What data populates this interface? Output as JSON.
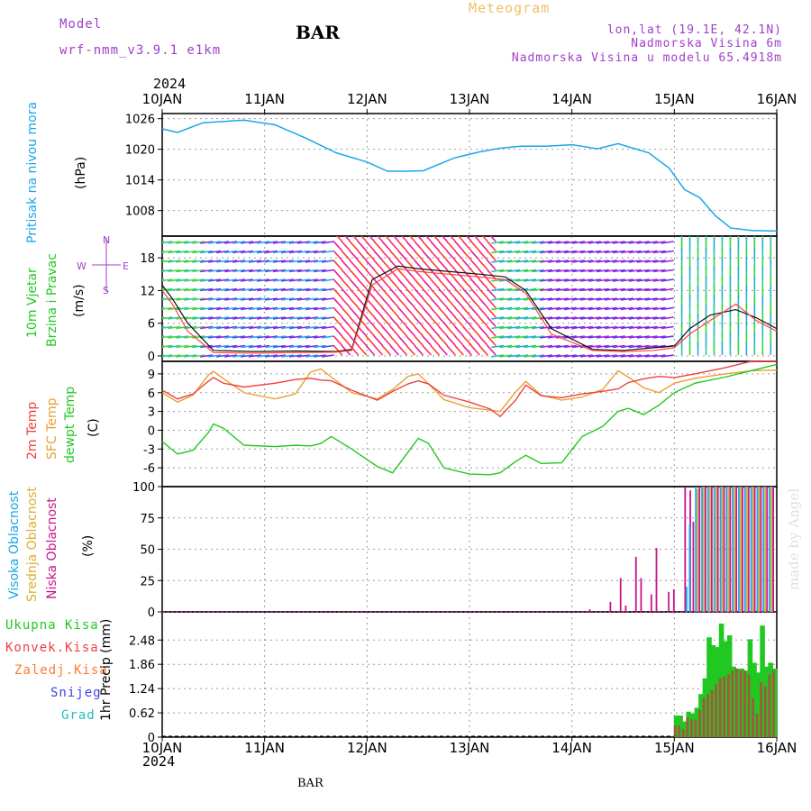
{
  "header": {
    "model_label": "Model",
    "model_name": "wrf-nmm_v3.9.1 e1km",
    "title": "BAR",
    "meteogram_label": "Meteogram",
    "lonlat": "lon,lat (19.1E, 42.1N)",
    "elevation": "Nadmorska Visina 6m",
    "model_elevation": "Nadmorska Visina u modelu 65.4918m",
    "year_top": "2024",
    "year_bottom": "2024",
    "footer": "BAR",
    "credit": "made by Angel"
  },
  "colors": {
    "pressure": "#1aa6e8",
    "temp2m": "#ef4040",
    "sfc": "#e8a030",
    "dewpt": "#22c822",
    "high_cloud": "#1aa6e8",
    "mid_cloud": "#d8b030",
    "low_cloud": "#c8148c",
    "total_precip": "#22c822",
    "conv_precip": "#ef4040",
    "frozen": "#ff7a30",
    "snow": "#4040e8",
    "graupel": "#20c0c0",
    "model": "#a040c8",
    "meteogram": "#f0c060",
    "location": "#a040c8"
  },
  "x_ticks": [
    "10JAN",
    "11JAN",
    "12JAN",
    "13JAN",
    "14JAN",
    "15JAN",
    "16JAN"
  ],
  "panel_labels": {
    "pressure": {
      "lines": [
        "Pritisak na nivou mora"
      ],
      "unit": "(hPa)"
    },
    "wind": {
      "lines": [
        "10m Vjetar",
        "Brzina i Pravac"
      ],
      "unit": "(m/s)",
      "compass": {
        "n": "N",
        "s": "S",
        "e": "E",
        "w": "W"
      }
    },
    "temp": {
      "lines": [
        "2m Temp",
        "SFC Temp",
        "dewpt Temp"
      ],
      "unit": "(C)"
    },
    "cloud": {
      "lines": [
        "Visoka Oblacnost",
        "Srednja Oblacnost",
        "Niska Oblacnost"
      ],
      "unit": "(%)"
    },
    "precip": {
      "legend": [
        "Ukupna Kisa",
        "Konvek.Kisa",
        "Zaledj.Kisa",
        "Snijeg",
        "Grad"
      ],
      "ylabel": "1hr Precip (mm)"
    }
  },
  "chart_data": [
    {
      "type": "line",
      "ylabel": "(hPa)",
      "ylim": [
        1003,
        1027
      ],
      "yticks": [
        1008,
        1014,
        1020,
        1026
      ],
      "x": [
        0,
        0.15,
        0.4,
        0.8,
        1.1,
        1.4,
        1.7,
        2.0,
        2.2,
        2.35,
        2.55,
        2.85,
        3.1,
        3.3,
        3.5,
        3.75,
        4.0,
        4.25,
        4.45,
        4.75,
        4.95,
        5.1,
        5.25,
        5.4,
        5.55,
        5.75,
        6.0
      ],
      "series": [
        {
          "values": [
            1024,
            1023.3,
            1025.2,
            1025.7,
            1024.8,
            1022.2,
            1019.3,
            1017.5,
            1015.7,
            1015.7,
            1015.8,
            1018.3,
            1019.5,
            1020.2,
            1020.6,
            1020.6,
            1020.9,
            1020.1,
            1021.1,
            1019.3,
            1016.3,
            1012.1,
            1010.5,
            1007.0,
            1004.6,
            1004.1,
            1004.0
          ]
        }
      ]
    },
    {
      "type": "line",
      "ylabel": "(m/s)",
      "ylim": [
        -1,
        22
      ],
      "yticks": [
        0,
        6,
        12,
        18
      ],
      "x": [
        0,
        0.1,
        0.25,
        0.5,
        0.9,
        1.3,
        1.7,
        1.85,
        2.05,
        2.3,
        2.5,
        2.8,
        3.1,
        3.35,
        3.55,
        3.8,
        4.2,
        4.5,
        4.8,
        5.0,
        5.15,
        5.35,
        5.6,
        5.8,
        6.0
      ],
      "series": [
        {
          "values": [
            13,
            10.5,
            6.0,
            1.0,
            0.8,
            0.9,
            0.8,
            1.2,
            14.0,
            16.5,
            16.0,
            15.5,
            15.0,
            14.5,
            12.0,
            5.0,
            1.2,
            1.0,
            1.5,
            1.8,
            5.0,
            7.5,
            8.5,
            7.0,
            5.0
          ]
        },
        {
          "values": [
            12,
            9.5,
            4.5,
            0.6,
            0.5,
            0.6,
            0.7,
            1.0,
            13.0,
            16.0,
            15.5,
            15.0,
            14.5,
            14.0,
            11.5,
            4.0,
            1.0,
            0.8,
            1.0,
            1.5,
            4.0,
            6.5,
            9.5,
            6.5,
            4.5
          ]
        }
      ]
    },
    {
      "type": "line",
      "ylabel": "(C)",
      "ylim": [
        -9,
        11
      ],
      "yticks": [
        -6,
        -3,
        0,
        3,
        6,
        9
      ],
      "x": [
        0,
        0.15,
        0.3,
        0.45,
        0.5,
        0.6,
        0.8,
        1.1,
        1.3,
        1.45,
        1.55,
        1.65,
        1.85,
        2.1,
        2.25,
        2.4,
        2.5,
        2.6,
        2.75,
        3.0,
        3.2,
        3.3,
        3.45,
        3.55,
        3.7,
        3.9,
        4.1,
        4.3,
        4.45,
        4.55,
        4.7,
        4.85,
        5.0,
        5.2,
        5.5,
        5.75,
        6.0
      ],
      "series": [
        {
          "name": "2m Temp",
          "values": [
            6.4,
            5.0,
            5.8,
            7.8,
            8.4,
            7.5,
            6.9,
            7.5,
            8.1,
            8.3,
            8.0,
            7.9,
            6.4,
            4.8,
            6.2,
            7.4,
            7.9,
            7.4,
            5.6,
            4.5,
            3.4,
            2.2,
            4.8,
            7.2,
            5.5,
            5.2,
            5.8,
            6.2,
            6.6,
            7.6,
            8.2,
            8.6,
            8.4,
            9.0,
            10.0,
            11.0,
            11.0
          ]
        },
        {
          "name": "SFC Temp",
          "values": [
            6.0,
            4.5,
            5.6,
            8.8,
            9.4,
            8.2,
            6.0,
            5.0,
            5.8,
            9.3,
            9.8,
            8.5,
            6.0,
            5.0,
            6.5,
            8.6,
            9.0,
            7.4,
            4.9,
            3.6,
            3.2,
            3.0,
            6.1,
            7.8,
            5.6,
            4.8,
            5.3,
            6.5,
            9.5,
            8.5,
            6.8,
            6.0,
            7.5,
            8.3,
            9.0,
            9.5,
            9.6
          ]
        },
        {
          "name": "dewpt Temp",
          "values": [
            -1.8,
            -3.8,
            -3.2,
            -0.4,
            1.0,
            0.3,
            -2.4,
            -2.6,
            -2.4,
            -2.5,
            -2.1,
            -1.0,
            -3.0,
            -5.8,
            -6.8,
            -3.5,
            -1.3,
            -2.1,
            -6.0,
            -7.0,
            -7.1,
            -6.8,
            -5.0,
            -4.0,
            -5.3,
            -5.2,
            -1.0,
            0.6,
            3.0,
            3.5,
            2.5,
            4.0,
            6.0,
            7.5,
            8.5,
            9.5,
            10.5
          ]
        }
      ]
    },
    {
      "type": "bar",
      "ylabel": "(%)",
      "ylim": [
        0,
        100
      ],
      "yticks": [
        0,
        25,
        50,
        75,
        100
      ],
      "x": [
        4.15,
        4.35,
        4.45,
        4.5,
        4.6,
        4.65,
        4.75,
        4.8,
        4.92,
        4.97,
        5.08,
        5.13,
        5.16,
        5.22,
        5.28,
        5.34,
        5.4,
        5.46,
        5.52,
        5.58,
        5.64,
        5.7,
        5.76,
        5.82,
        5.88,
        5.94
      ],
      "series": [
        {
          "name": "Visoka Oblacnost",
          "values": [
            0,
            0,
            0,
            0,
            0,
            0,
            0,
            0,
            0,
            0,
            0,
            20,
            70,
            100,
            100,
            100,
            100,
            100,
            100,
            100,
            100,
            100,
            100,
            100,
            100,
            100
          ]
        },
        {
          "name": "Srednja Oblacnost",
          "values": [
            0,
            0,
            0,
            0,
            0,
            0,
            0,
            0,
            0,
            0,
            0,
            0,
            0,
            98,
            100,
            100,
            100,
            100,
            100,
            100,
            100,
            100,
            100,
            100,
            100,
            100
          ]
        },
        {
          "name": "Niska Oblacnost",
          "values": [
            2,
            8,
            27,
            5,
            44,
            27,
            14,
            51,
            16,
            18,
            100,
            97,
            72,
            100,
            100,
            100,
            100,
            100,
            100,
            100,
            100,
            100,
            100,
            100,
            100,
            100
          ]
        }
      ]
    },
    {
      "type": "bar",
      "ylabel": "1hr Precip (mm)",
      "ylim": [
        0,
        3.2
      ],
      "yticks": [
        0,
        0.62,
        1.24,
        1.86,
        2.48
      ],
      "x": [
        5.02,
        5.06,
        5.1,
        5.14,
        5.18,
        5.22,
        5.26,
        5.3,
        5.34,
        5.38,
        5.42,
        5.46,
        5.5,
        5.54,
        5.58,
        5.62,
        5.66,
        5.7,
        5.74,
        5.78,
        5.82,
        5.86,
        5.9,
        5.94,
        5.98
      ],
      "series": [
        {
          "name": "Ukupna Kisa",
          "values": [
            0.55,
            0.55,
            0.4,
            0.65,
            0.6,
            0.75,
            1.1,
            1.5,
            2.55,
            2.35,
            2.3,
            2.9,
            2.45,
            2.6,
            1.8,
            1.75,
            1.75,
            1.7,
            2.5,
            1.9,
            1.65,
            2.85,
            1.8,
            1.9,
            1.75
          ]
        },
        {
          "name": "Konvek.Kisa",
          "values": [
            0.3,
            0.3,
            0.2,
            0.5,
            0.45,
            0.45,
            0.7,
            1.0,
            1.1,
            1.2,
            1.35,
            1.5,
            1.55,
            1.6,
            1.7,
            1.75,
            1.7,
            1.7,
            1.6,
            1.0,
            0.6,
            1.4,
            1.3,
            1.6,
            1.7
          ]
        }
      ]
    }
  ]
}
